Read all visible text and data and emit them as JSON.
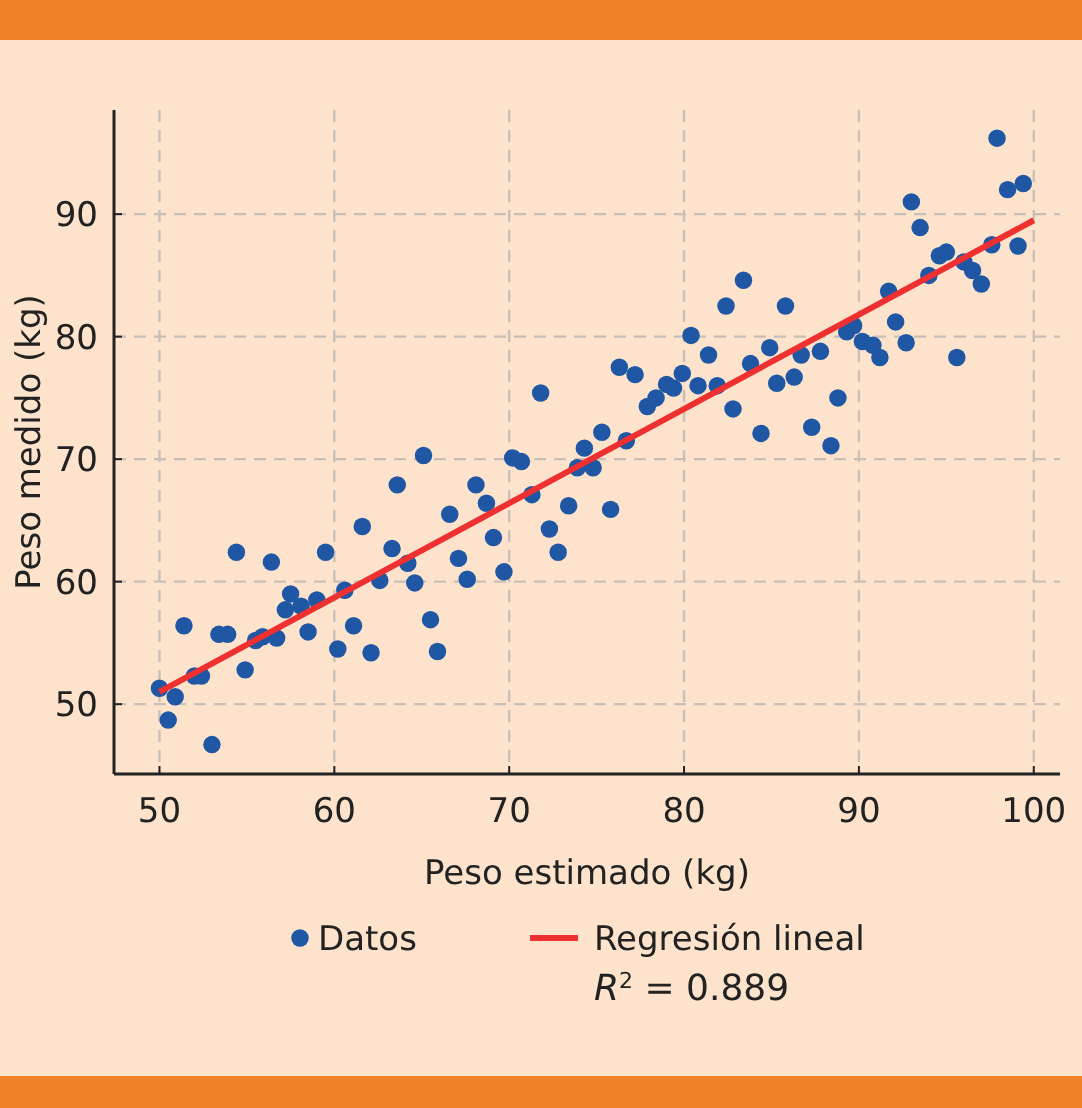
{
  "chart_data": {
    "type": "scatter",
    "xlabel": "Peso estimado (kg)",
    "ylabel": "Peso medido (kg)",
    "xlim": [
      47.4,
      101.5
    ],
    "ylim": [
      44.3,
      98.5
    ],
    "xticks": [
      50,
      60,
      70,
      80,
      90,
      100
    ],
    "yticks": [
      50,
      60,
      70,
      80,
      90
    ],
    "grid": true,
    "legend": "bottom",
    "marker": "circle",
    "annotations": [
      "R$^{2}$ = 0.889"
    ],
    "series": [
      {
        "name": "Datos",
        "color": "#1f57a5",
        "x": [
          50,
          50.5,
          50.9,
          51.4,
          52,
          52.4,
          53,
          53.4,
          53.9,
          54.4,
          54.9,
          55.5,
          56.4,
          55.9,
          56.7,
          57.2,
          57.5,
          58.1,
          58.5,
          59,
          59.5,
          60.2,
          60.6,
          61.1,
          61.6,
          62.1,
          62.6,
          63.3,
          63.6,
          64.2,
          64.6,
          65.1,
          65.5,
          65.9,
          66.6,
          67.1,
          67.6,
          68.1,
          68.7,
          69.1,
          69.7,
          70.2,
          70.7,
          71.3,
          71.8,
          72.3,
          72.8,
          73.4,
          73.9,
          74.3,
          74.8,
          75.3,
          75.8,
          76.3,
          76.7,
          77.2,
          77.9,
          78.4,
          79,
          79.4,
          79.9,
          80.4,
          80.8,
          81.4,
          81.9,
          82.4,
          82.8,
          83.4,
          83.8,
          84.4,
          84.9,
          85.3,
          85.8,
          86.3,
          86.7,
          87.3,
          87.8,
          88.4,
          88.8,
          89.3,
          89.7,
          90.2,
          90.8,
          91.2,
          91.7,
          92.1,
          92.7,
          93,
          93.5,
          94,
          94.6,
          95,
          95.6,
          96,
          96.5,
          97,
          97.6,
          97.9,
          98.5,
          99.1,
          99.4
        ],
        "values": [
          51.3,
          48.7,
          50.6,
          56.4,
          52.3,
          52.3,
          46.7,
          55.7,
          55.7,
          62.4,
          52.8,
          55.2,
          61.6,
          55.5,
          55.4,
          57.7,
          59,
          58,
          55.9,
          58.5,
          62.4,
          54.5,
          59.3,
          56.4,
          64.5,
          54.2,
          60.1,
          62.7,
          67.9,
          61.5,
          59.9,
          70.3,
          56.9,
          54.3,
          65.5,
          61.9,
          60.2,
          67.9,
          66.4,
          63.6,
          60.8,
          70.1,
          69.8,
          67.1,
          75.4,
          64.3,
          62.4,
          66.2,
          69.3,
          70.9,
          69.3,
          72.2,
          65.9,
          77.5,
          71.5,
          76.9,
          74.3,
          75,
          76.1,
          75.8,
          77,
          80.1,
          76,
          78.5,
          76,
          82.5,
          74.1,
          84.6,
          77.8,
          72.1,
          79.1,
          76.2,
          82.5,
          76.7,
          78.5,
          72.6,
          78.8,
          71.1,
          75,
          80.4,
          80.9,
          79.6,
          79.3,
          78.3,
          83.7,
          81.2,
          79.5,
          91,
          88.9,
          85,
          86.6,
          86.9,
          78.3,
          86.1,
          85.4,
          84.3,
          87.5,
          96.2,
          92,
          87.4,
          92.5
        ]
      },
      {
        "name": "Regresión lineal",
        "type": "line",
        "color": "#ee3030",
        "x": [
          50,
          100
        ],
        "values": [
          51,
          89.5
        ],
        "marker": "none",
        "line_style": "solid"
      }
    ]
  }
}
